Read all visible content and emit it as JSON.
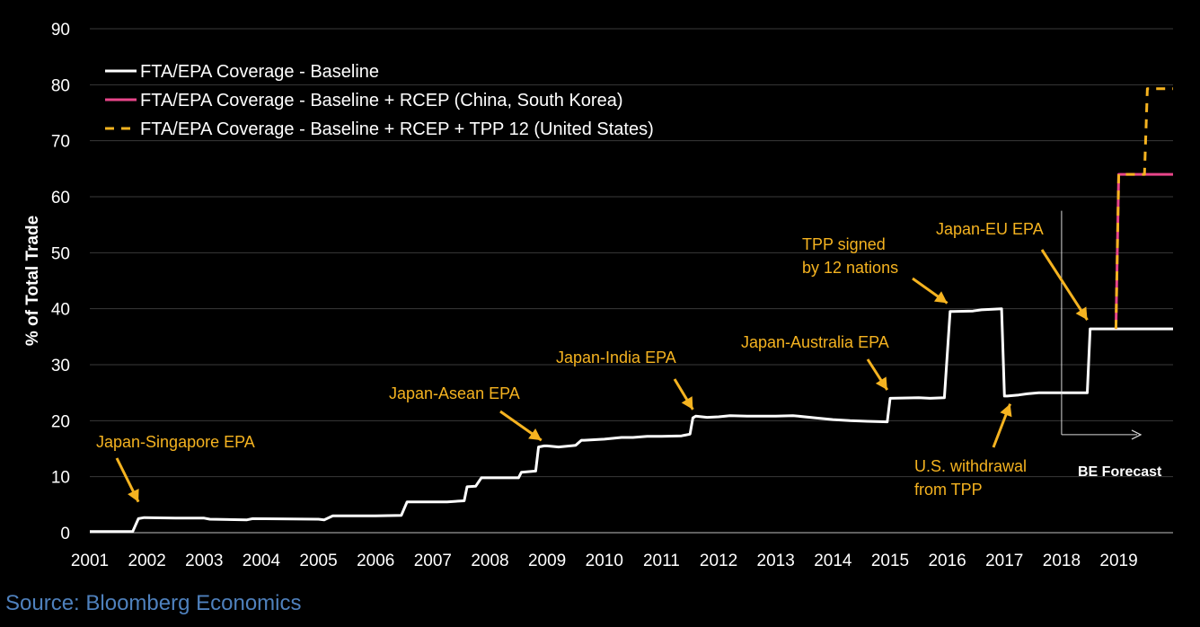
{
  "chart_data": {
    "type": "line",
    "title": "",
    "xlabel": "",
    "ylabel": "% of Total Trade",
    "xlim": [
      2001,
      2019.95
    ],
    "ylim": [
      0,
      90
    ],
    "yticks": [
      0,
      10,
      20,
      30,
      40,
      50,
      60,
      70,
      80,
      90
    ],
    "xticks": [
      "2001",
      "2002",
      "2003",
      "2004",
      "2005",
      "2006",
      "2007",
      "2008",
      "2009",
      "2010",
      "2011",
      "2012",
      "2013",
      "2014",
      "2015",
      "2016",
      "2017",
      "2018",
      "2019"
    ],
    "grid": "horizontal",
    "legend_position": "top-left",
    "colors": {
      "baseline": "#ffffff",
      "rcep": "#e8468a",
      "tpp": "#f5b320",
      "annotation": "#f5b320",
      "grid": "#3a3a3a",
      "source": "#4f81bd"
    },
    "series": [
      {
        "name": "FTA/EPA Coverage - Baseline",
        "style": "solid",
        "x": [
          2001,
          2001.75,
          2001.85,
          2001.95,
          2002.5,
          2003.0,
          2003.1,
          2003.75,
          2003.85,
          2005.0,
          2005.1,
          2005.25,
          2005.35,
          2006.0,
          2006.45,
          2006.55,
          2007.0,
          2007.25,
          2007.55,
          2007.6,
          2007.75,
          2007.85,
          2008.5,
          2008.55,
          2008.8,
          2008.85,
          2008.95,
          2009.0,
          2009.2,
          2009.5,
          2009.6,
          2009.65,
          2010.0,
          2010.3,
          2010.5,
          2010.75,
          2011.0,
          2011.35,
          2011.5,
          2011.55,
          2011.6,
          2011.8,
          2012.0,
          2012.2,
          2012.5,
          2013.0,
          2013.3,
          2013.7,
          2014.0,
          2014.3,
          2014.6,
          2014.95,
          2015.0,
          2015.5,
          2015.7,
          2015.95,
          2016.05,
          2016.1,
          2016.45,
          2016.6,
          2016.95,
          2017.0,
          2017.05,
          2017.25,
          2017.4,
          2017.6,
          2017.75,
          2017.85,
          2018.45,
          2018.5,
          2019.95
        ],
        "y": [
          0.2,
          0.2,
          2.5,
          2.7,
          2.6,
          2.6,
          2.4,
          2.3,
          2.5,
          2.4,
          2.3,
          3.0,
          3.0,
          3.0,
          3.1,
          5.5,
          5.5,
          5.5,
          5.7,
          8.2,
          8.3,
          9.8,
          9.8,
          10.8,
          11.0,
          15.3,
          15.5,
          15.5,
          15.3,
          15.6,
          16.5,
          16.5,
          16.7,
          17.0,
          17.0,
          17.2,
          17.2,
          17.3,
          17.6,
          20.5,
          20.8,
          20.6,
          20.7,
          20.9,
          20.8,
          20.8,
          20.9,
          20.5,
          20.2,
          20.0,
          19.9,
          19.8,
          24.0,
          24.1,
          24.0,
          24.1,
          39.5,
          39.5,
          39.6,
          39.8,
          40.0,
          24.4,
          24.4,
          24.6,
          24.8,
          25.0,
          25.0,
          25.0,
          25.0,
          36.4,
          36.4
        ]
      },
      {
        "name": "FTA/EPA Coverage - Baseline + RCEP (China, South Korea)",
        "style": "solid",
        "x": [
          2018.95,
          2019.0,
          2019.95
        ],
        "y": [
          36.4,
          64.0,
          64.0
        ]
      },
      {
        "name": "FTA/EPA Coverage - Baseline + RCEP + TPP 12 (United States)",
        "style": "dashed",
        "x": [
          2018.95,
          2019.0,
          2019.45,
          2019.5,
          2019.95
        ],
        "y": [
          36.4,
          64.0,
          64.0,
          79.3,
          79.3
        ]
      }
    ],
    "annotations": [
      {
        "text": [
          "Japan-Singapore EPA"
        ],
        "target": [
          2001.85,
          5.5
        ]
      },
      {
        "text": [
          "Japan-Asean EPA"
        ],
        "target": [
          2008.9,
          16.5
        ]
      },
      {
        "text": [
          "Japan-India EPA"
        ],
        "target": [
          2011.55,
          22.0
        ]
      },
      {
        "text": [
          "Japan-Australia EPA"
        ],
        "target": [
          2014.95,
          25.5
        ]
      },
      {
        "text": [
          "TPP signed",
          "by 12 nations"
        ],
        "target": [
          2016.0,
          41.0
        ]
      },
      {
        "text": [
          "Japan-EU EPA"
        ],
        "target": [
          2018.45,
          38.0
        ]
      },
      {
        "text": [
          "U.S. withdrawal",
          "from TPP"
        ],
        "target": [
          2017.1,
          23.0
        ]
      }
    ],
    "forecast_label": "BE Forecast"
  },
  "source": "Source: Bloomberg Economics"
}
